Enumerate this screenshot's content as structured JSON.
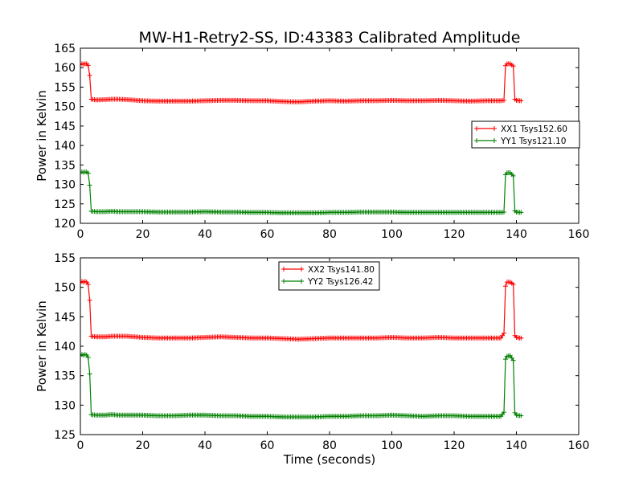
{
  "chart_data": [
    {
      "type": "line",
      "title": "MW-H1-Retry2-SS, ID:43383 Calibrated Amplitude",
      "xlabel": "",
      "ylabel": "Power in Kelvin",
      "xlim": [
        0,
        160
      ],
      "ylim": [
        120,
        165
      ],
      "xticks": [
        0,
        20,
        40,
        60,
        80,
        100,
        120,
        140,
        160
      ],
      "yticks": [
        120,
        125,
        130,
        135,
        140,
        145,
        150,
        155,
        160,
        165
      ],
      "grid": false,
      "legend_position": "center-right",
      "series": [
        {
          "name": "XX1 Tsys152.60",
          "color": "#ff0000",
          "x": [
            0,
            0.5,
            1,
            1.5,
            2,
            2.5,
            3,
            3.5,
            5,
            8,
            10,
            12,
            15,
            20,
            25,
            30,
            35,
            40,
            45,
            50,
            55,
            60,
            65,
            70,
            75,
            80,
            85,
            90,
            95,
            100,
            105,
            110,
            115,
            120,
            125,
            130,
            135,
            136,
            136.5,
            137,
            138,
            139,
            139.5,
            140,
            141,
            142
          ],
          "y": [
            160.8,
            161.0,
            160.9,
            161.0,
            161.0,
            160.6,
            158.0,
            151.9,
            151.7,
            151.8,
            151.9,
            151.9,
            151.8,
            151.5,
            151.4,
            151.4,
            151.4,
            151.5,
            151.6,
            151.6,
            151.5,
            151.5,
            151.3,
            151.2,
            151.4,
            151.5,
            151.4,
            151.5,
            151.5,
            151.6,
            151.5,
            151.5,
            151.6,
            151.5,
            151.4,
            151.5,
            151.5,
            151.6,
            160.5,
            161.0,
            161.0,
            160.4,
            151.9,
            151.6,
            151.5,
            151.5
          ]
        },
        {
          "name": "YY1 Tsys121.10",
          "color": "#008000",
          "x": [
            0,
            0.5,
            1,
            1.5,
            2,
            2.5,
            3,
            3.5,
            5,
            8,
            10,
            12,
            15,
            20,
            25,
            30,
            35,
            40,
            45,
            50,
            55,
            60,
            65,
            70,
            75,
            80,
            85,
            90,
            95,
            100,
            105,
            110,
            115,
            120,
            125,
            130,
            135,
            136,
            136.5,
            137,
            138,
            139,
            139.5,
            140,
            141,
            142
          ],
          "y": [
            133.0,
            133.2,
            133.1,
            133.2,
            133.2,
            132.9,
            129.8,
            123.1,
            123.0,
            123.0,
            123.1,
            123.0,
            123.0,
            123.0,
            122.9,
            122.9,
            122.9,
            123.0,
            122.9,
            122.9,
            122.8,
            122.8,
            122.7,
            122.7,
            122.7,
            122.8,
            122.8,
            122.9,
            122.9,
            122.9,
            122.8,
            122.8,
            122.8,
            122.8,
            122.8,
            122.8,
            122.8,
            122.9,
            132.5,
            133.0,
            133.0,
            132.2,
            123.2,
            122.9,
            122.8,
            122.8
          ]
        }
      ]
    },
    {
      "type": "line",
      "title": "",
      "xlabel": "Time (seconds)",
      "ylabel": "Power in Kelvin",
      "xlim": [
        0,
        160
      ],
      "ylim": [
        125,
        155
      ],
      "xticks": [
        0,
        20,
        40,
        60,
        80,
        100,
        120,
        140,
        160
      ],
      "yticks": [
        125,
        130,
        135,
        140,
        145,
        150,
        155
      ],
      "grid": false,
      "legend_position": "upper-center",
      "series": [
        {
          "name": "XX2 Tsys141.80",
          "color": "#ff0000",
          "x": [
            0,
            0.5,
            1,
            1.5,
            2,
            2.5,
            3,
            3.5,
            5,
            8,
            10,
            12,
            15,
            20,
            25,
            30,
            35,
            40,
            45,
            50,
            55,
            60,
            65,
            70,
            75,
            80,
            85,
            90,
            95,
            100,
            105,
            110,
            115,
            120,
            125,
            130,
            135,
            136,
            136.5,
            137,
            138,
            139,
            139.5,
            140,
            141,
            142
          ],
          "y": [
            150.8,
            151.0,
            150.9,
            151.0,
            150.9,
            150.5,
            147.8,
            141.7,
            141.6,
            141.6,
            141.7,
            141.7,
            141.7,
            141.5,
            141.4,
            141.4,
            141.4,
            141.5,
            141.6,
            141.5,
            141.4,
            141.4,
            141.3,
            141.2,
            141.3,
            141.4,
            141.4,
            141.4,
            141.4,
            141.5,
            141.4,
            141.4,
            141.5,
            141.4,
            141.4,
            141.4,
            141.4,
            142.2,
            150.2,
            150.9,
            150.9,
            150.5,
            141.8,
            141.5,
            141.4,
            141.4
          ]
        },
        {
          "name": "YY2 Tsys126.42",
          "color": "#008000",
          "x": [
            0,
            0.5,
            1,
            1.5,
            2,
            2.5,
            3,
            3.5,
            5,
            8,
            10,
            12,
            15,
            20,
            25,
            30,
            35,
            40,
            45,
            50,
            55,
            60,
            65,
            70,
            75,
            80,
            85,
            90,
            95,
            100,
            105,
            110,
            115,
            120,
            125,
            130,
            135,
            136,
            136.5,
            137,
            138,
            139,
            139.5,
            140,
            141,
            142
          ],
          "y": [
            138.4,
            138.6,
            138.5,
            138.6,
            138.5,
            138.1,
            135.3,
            128.4,
            128.3,
            128.3,
            128.4,
            128.3,
            128.3,
            128.3,
            128.2,
            128.2,
            128.3,
            128.3,
            128.2,
            128.2,
            128.1,
            128.1,
            128.0,
            128.0,
            128.0,
            128.1,
            128.1,
            128.2,
            128.2,
            128.3,
            128.2,
            128.1,
            128.2,
            128.2,
            128.1,
            128.1,
            128.1,
            128.8,
            137.8,
            138.3,
            138.4,
            137.6,
            128.7,
            128.3,
            128.2,
            128.2
          ]
        }
      ]
    }
  ]
}
